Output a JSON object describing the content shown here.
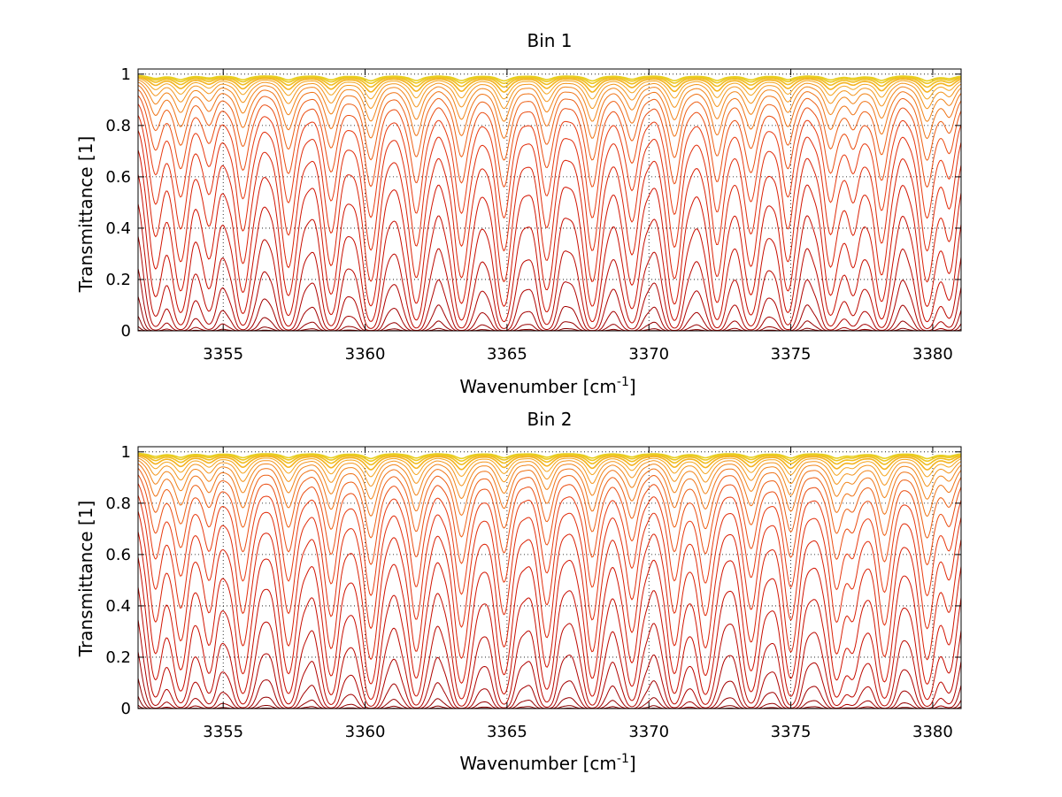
{
  "chart_data": [
    {
      "type": "line",
      "title": "Bin 1",
      "xlabel": {
        "text": "Wavenumber [cm",
        "sup": "-1",
        "close": "]"
      },
      "ylabel": "Transmittance [1]",
      "xlim": [
        3352,
        3381
      ],
      "ylim": [
        0,
        1.02
      ],
      "xticks": [
        3355,
        3360,
        3365,
        3370,
        3375,
        3380
      ],
      "xtick_labels": [
        "3355",
        "3360",
        "3365",
        "3370",
        "3375",
        "3380"
      ],
      "yticks": [
        0,
        0.2,
        0.4,
        0.6,
        0.8,
        1
      ],
      "ytick_labels": [
        "0",
        "0.2",
        "0.4",
        "0.6",
        "0.8",
        "1"
      ],
      "grid": "dotted",
      "series_count": 22,
      "colormap": [
        "#7a0000",
        "#a80000",
        "#d01000",
        "#e83a10",
        "#f07a18",
        "#f5b020",
        "#e8d020"
      ],
      "absorption_lines": [
        {
          "x": 3352.6,
          "depth": 0.55
        },
        {
          "x": 3353.5,
          "depth": 0.75
        },
        {
          "x": 3354.5,
          "depth": 0.45
        },
        {
          "x": 3355.7,
          "depth": 0.8
        },
        {
          "x": 3357.3,
          "depth": 0.85
        },
        {
          "x": 3358.8,
          "depth": 0.8
        },
        {
          "x": 3360.2,
          "depth": 1.0
        },
        {
          "x": 3361.8,
          "depth": 0.95
        },
        {
          "x": 3363.4,
          "depth": 0.95
        },
        {
          "x": 3364.9,
          "depth": 1.0
        },
        {
          "x": 3366.4,
          "depth": 0.75
        },
        {
          "x": 3368.0,
          "depth": 1.0
        },
        {
          "x": 3369.4,
          "depth": 0.7
        },
        {
          "x": 3370.9,
          "depth": 0.95
        },
        {
          "x": 3372.4,
          "depth": 0.9
        },
        {
          "x": 3373.6,
          "depth": 0.8
        },
        {
          "x": 3374.9,
          "depth": 0.75
        },
        {
          "x": 3376.4,
          "depth": 0.8
        },
        {
          "x": 3377.2,
          "depth": 0.45
        },
        {
          "x": 3378.2,
          "depth": 0.9
        },
        {
          "x": 3379.8,
          "depth": 1.0
        },
        {
          "x": 3380.6,
          "depth": 0.55
        }
      ]
    },
    {
      "type": "line",
      "title": "Bin 2",
      "xlabel": {
        "text": "Wavenumber [cm",
        "sup": "-1",
        "close": "]"
      },
      "ylabel": "Transmittance [1]",
      "xlim": [
        3352,
        3381
      ],
      "ylim": [
        0,
        1.02
      ],
      "xticks": [
        3355,
        3360,
        3365,
        3370,
        3375,
        3380
      ],
      "xtick_labels": [
        "3355",
        "3360",
        "3365",
        "3370",
        "3375",
        "3380"
      ],
      "yticks": [
        0,
        0.2,
        0.4,
        0.6,
        0.8,
        1
      ],
      "ytick_labels": [
        "0",
        "0.2",
        "0.4",
        "0.6",
        "0.8",
        "1"
      ],
      "grid": "dotted",
      "series_count": 22,
      "colormap": [
        "#7a0000",
        "#a80000",
        "#d01000",
        "#e83a10",
        "#f07a18",
        "#f5b020",
        "#e8d020"
      ],
      "absorption_lines": [
        {
          "x": 3352.6,
          "depth": 0.6
        },
        {
          "x": 3353.5,
          "depth": 0.75
        },
        {
          "x": 3354.5,
          "depth": 0.5
        },
        {
          "x": 3355.7,
          "depth": 0.85
        },
        {
          "x": 3357.3,
          "depth": 0.85
        },
        {
          "x": 3358.8,
          "depth": 0.85
        },
        {
          "x": 3360.2,
          "depth": 1.0
        },
        {
          "x": 3361.8,
          "depth": 0.9
        },
        {
          "x": 3363.4,
          "depth": 1.0
        },
        {
          "x": 3364.9,
          "depth": 0.85
        },
        {
          "x": 3366.4,
          "depth": 0.75
        },
        {
          "x": 3368.0,
          "depth": 0.9
        },
        {
          "x": 3369.4,
          "depth": 0.7
        },
        {
          "x": 3370.9,
          "depth": 0.8
        },
        {
          "x": 3372.0,
          "depth": 0.85
        },
        {
          "x": 3373.6,
          "depth": 0.8
        },
        {
          "x": 3375.0,
          "depth": 0.9
        },
        {
          "x": 3376.6,
          "depth": 0.85
        },
        {
          "x": 3377.2,
          "depth": 0.45
        },
        {
          "x": 3378.3,
          "depth": 0.95
        },
        {
          "x": 3379.8,
          "depth": 1.0
        },
        {
          "x": 3380.6,
          "depth": 0.5
        }
      ]
    }
  ]
}
